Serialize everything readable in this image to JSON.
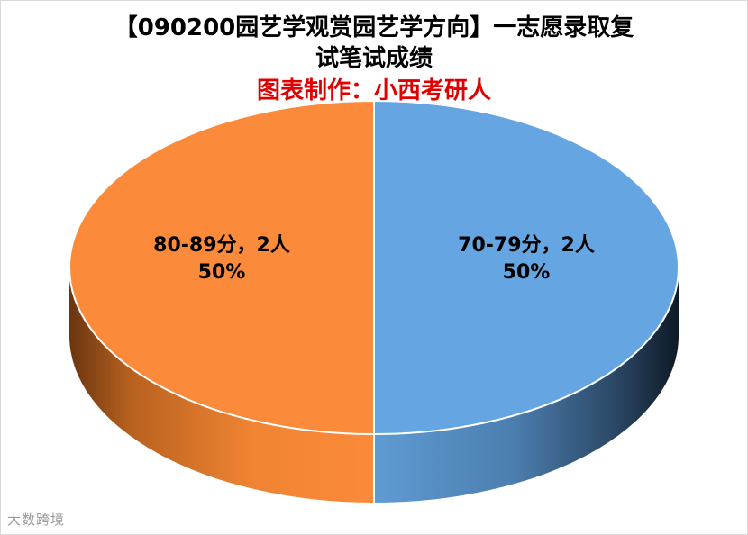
{
  "chart_data": {
    "type": "pie",
    "title_line1": "【090200园艺学观赏园艺学方向】一志愿录取复",
    "title_line2": "试笔试成绩",
    "subtitle": "图表制作：小西考研人",
    "slices": [
      {
        "label": "70-79分，2人",
        "value": 2,
        "percent": "50%",
        "color": "#65a6e2"
      },
      {
        "label": "80-89分，2人",
        "value": 2,
        "percent": "50%",
        "color": "#fb8a3a"
      }
    ]
  },
  "watermark": "大数跨境"
}
